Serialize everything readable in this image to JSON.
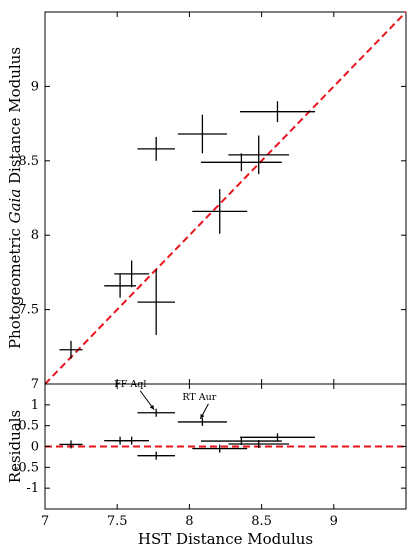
{
  "chart_data": [
    {
      "type": "scatter",
      "panel": "main",
      "xlabel": "",
      "ylabel": "Photogeometric Gaia Distance Modulus",
      "ylabel_parts": [
        "Photogeometric ",
        "Gaia",
        " Distance Modulus"
      ],
      "xlim": [
        7,
        9.5
      ],
      "ylim": [
        7,
        9.5
      ],
      "xticks": [
        7,
        7.5,
        8,
        8.5,
        9
      ],
      "yticks": [
        7,
        7.5,
        8,
        8.5,
        9
      ],
      "xtick_labels_visible": false,
      "ytick_labels": [
        "7",
        "7.5",
        "8",
        "8.5",
        "9"
      ],
      "reference_line": {
        "type": "one-to-one",
        "style": "dashed",
        "color": "#e8141c"
      },
      "points": [
        {
          "x": 7.18,
          "y": 7.23,
          "xerr": 0.08,
          "yerr": 0.06
        },
        {
          "x": 7.52,
          "y": 7.66,
          "xerr": 0.11,
          "yerr": 0.08
        },
        {
          "x": 7.6,
          "y": 7.74,
          "xerr": 0.12,
          "yerr": 0.09
        },
        {
          "x": 7.77,
          "y": 7.55,
          "xerr": 0.13,
          "yerr": 0.22
        },
        {
          "x": 7.77,
          "y": 8.58,
          "xerr": 0.13,
          "yerr": 0.08
        },
        {
          "x": 8.09,
          "y": 8.68,
          "xerr": 0.17,
          "yerr": 0.13
        },
        {
          "x": 8.21,
          "y": 8.16,
          "xerr": 0.19,
          "yerr": 0.15
        },
        {
          "x": 8.36,
          "y": 8.49,
          "xerr": 0.28,
          "yerr": 0.06
        },
        {
          "x": 8.48,
          "y": 8.54,
          "xerr": 0.21,
          "yerr": 0.13
        },
        {
          "x": 8.61,
          "y": 8.83,
          "xerr": 0.26,
          "yerr": 0.07
        }
      ]
    },
    {
      "type": "scatter",
      "panel": "residuals",
      "xlabel": "HST Distance Modulus",
      "ylabel": "Residuals",
      "xlim": [
        7,
        9.5
      ],
      "ylim": [
        -1.5,
        1.5
      ],
      "xticks": [
        7,
        7.5,
        8,
        8.5,
        9
      ],
      "xtick_labels": [
        "7",
        "7.5",
        "8",
        "8.5",
        "9"
      ],
      "yticks": [
        1,
        0.5,
        0,
        -0.5,
        -1
      ],
      "ytick_labels": [
        "1",
        "0.5",
        "0",
        "-0.5",
        "-1"
      ],
      "reference_line": {
        "type": "zero",
        "style": "dashed",
        "color": "#e8141c"
      },
      "annotations": [
        {
          "text": "FF Aql",
          "target_x": 7.77,
          "target_y": 0.81
        },
        {
          "text": "RT Aur",
          "target_x": 8.09,
          "target_y": 0.59
        }
      ],
      "points": [
        {
          "x": 7.18,
          "y": 0.05,
          "xerr": 0.08
        },
        {
          "x": 7.52,
          "y": 0.14,
          "xerr": 0.11
        },
        {
          "x": 7.6,
          "y": 0.14,
          "xerr": 0.12
        },
        {
          "x": 7.77,
          "y": -0.22,
          "xerr": 0.13
        },
        {
          "x": 7.77,
          "y": 0.81,
          "xerr": 0.13
        },
        {
          "x": 8.09,
          "y": 0.59,
          "xerr": 0.17
        },
        {
          "x": 8.21,
          "y": -0.05,
          "xerr": 0.19
        },
        {
          "x": 8.36,
          "y": 0.13,
          "xerr": 0.28
        },
        {
          "x": 8.48,
          "y": 0.06,
          "xerr": 0.21
        },
        {
          "x": 8.61,
          "y": 0.22,
          "xerr": 0.26
        }
      ]
    }
  ]
}
